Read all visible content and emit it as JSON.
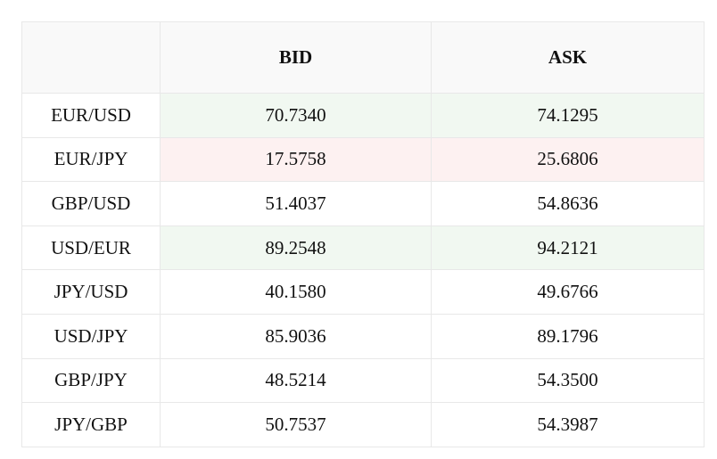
{
  "table": {
    "headers": {
      "pair": "",
      "bid": "BID",
      "ask": "ASK"
    },
    "colors": {
      "up": "#f1f8f1",
      "down": "#fdf1f1",
      "neutral": "#ffffff"
    },
    "rows": [
      {
        "pair": "EUR/USD",
        "bid": "70.7340",
        "ask": "74.1295",
        "trend": "up"
      },
      {
        "pair": "EUR/JPY",
        "bid": "17.5758",
        "ask": "25.6806",
        "trend": "down"
      },
      {
        "pair": "GBP/USD",
        "bid": "51.4037",
        "ask": "54.8636",
        "trend": "neutral"
      },
      {
        "pair": "USD/EUR",
        "bid": "89.2548",
        "ask": "94.2121",
        "trend": "up"
      },
      {
        "pair": "JPY/USD",
        "bid": "40.1580",
        "ask": "49.6766",
        "trend": "neutral"
      },
      {
        "pair": "USD/JPY",
        "bid": "85.9036",
        "ask": "89.1796",
        "trend": "neutral"
      },
      {
        "pair": "GBP/JPY",
        "bid": "48.5214",
        "ask": "54.3500",
        "trend": "neutral"
      },
      {
        "pair": "JPY/GBP",
        "bid": "50.7537",
        "ask": "54.3987",
        "trend": "neutral"
      }
    ]
  }
}
